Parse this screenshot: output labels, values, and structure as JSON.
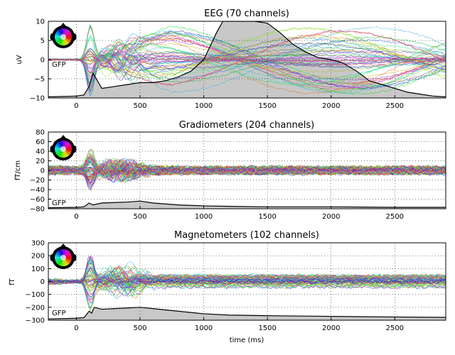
{
  "chart_data": [
    {
      "type": "line",
      "title": "EEG (70 channels)",
      "ylabel": "uV",
      "xlabel": "",
      "xlim": [
        -220,
        2900
      ],
      "ylim": [
        -10,
        10
      ],
      "xticks": [
        0,
        500,
        1000,
        1500,
        2000,
        2500
      ],
      "yticks": [
        -10,
        -5,
        0,
        5,
        10
      ],
      "ytick_labels": [
        "−10",
        "−5",
        "0",
        "5",
        "10"
      ],
      "grid": true,
      "gfp_label": "GFP",
      "channel_count": 70,
      "gfp_color": "#c8c8c8",
      "gfp": {
        "x": [
          -220,
          0,
          60,
          100,
          130,
          200,
          300,
          400,
          500,
          600,
          700,
          800,
          900,
          1000,
          1100,
          1150,
          1200,
          1300,
          1400,
          1500,
          1600,
          1700,
          1800,
          1900,
          2000,
          2100,
          2200,
          2300,
          2400,
          2500,
          2600,
          2700,
          2800,
          2900
        ],
        "y": [
          -9.7,
          -9.5,
          -9.2,
          -7,
          -3.5,
          -7.5,
          -7,
          -6.5,
          -6,
          -6,
          -5.5,
          -4.5,
          -3,
          0,
          7,
          10,
          10,
          10,
          10,
          9.5,
          7,
          4,
          2,
          0.5,
          0,
          -1,
          -3,
          -5.5,
          -6.5,
          -7.5,
          -8.5,
          -9,
          -9.5,
          -9.7
        ]
      }
    },
    {
      "type": "line",
      "title": "Gradiometers (204 channels)",
      "ylabel": "fT/cm",
      "xlabel": "",
      "xlim": [
        -220,
        2900
      ],
      "ylim": [
        -80,
        80
      ],
      "xticks": [
        0,
        500,
        1000,
        1500,
        2000,
        2500
      ],
      "yticks": [
        -80,
        -60,
        -40,
        -20,
        0,
        20,
        40,
        60,
        80
      ],
      "ytick_labels": [
        "−80",
        "−60",
        "−40",
        "−20",
        "0",
        "20",
        "40",
        "60",
        "80"
      ],
      "grid": true,
      "gfp_label": "GFP",
      "channel_count": 204,
      "gfp_color": "#c8c8c8",
      "gfp": {
        "x": [
          -220,
          0,
          60,
          100,
          130,
          200,
          300,
          400,
          500,
          600,
          700,
          800,
          900,
          1000,
          1200,
          1500,
          2000,
          2500,
          2900
        ],
        "y": [
          -78,
          -77,
          -76,
          -68,
          -72,
          -68,
          -67,
          -66,
          -64,
          -68,
          -70,
          -72,
          -73,
          -74,
          -75,
          -76,
          -76,
          -77,
          -77
        ]
      }
    },
    {
      "type": "line",
      "title": "Magnetometers (102 channels)",
      "ylabel": "fT",
      "xlabel": "time (ms)",
      "xlim": [
        -220,
        2900
      ],
      "ylim": [
        -300,
        300
      ],
      "xticks": [
        0,
        500,
        1000,
        1500,
        2000,
        2500
      ],
      "yticks": [
        -300,
        -200,
        -100,
        0,
        100,
        200,
        300
      ],
      "ytick_labels": [
        "−300",
        "−200",
        "−100",
        "0",
        "100",
        "200",
        "300"
      ],
      "grid": true,
      "gfp_label": "GFP",
      "channel_count": 102,
      "gfp_color": "#c8c8c8",
      "gfp": {
        "x": [
          -220,
          0,
          60,
          100,
          120,
          140,
          200,
          300,
          400,
          500,
          600,
          700,
          800,
          900,
          1000,
          1200,
          1500,
          2000,
          2500,
          2900
        ],
        "y": [
          -290,
          -285,
          -280,
          -230,
          -245,
          -200,
          -215,
          -210,
          -205,
          -200,
          -210,
          -220,
          -230,
          -240,
          -250,
          -260,
          -265,
          -270,
          -275,
          -278
        ]
      }
    }
  ]
}
